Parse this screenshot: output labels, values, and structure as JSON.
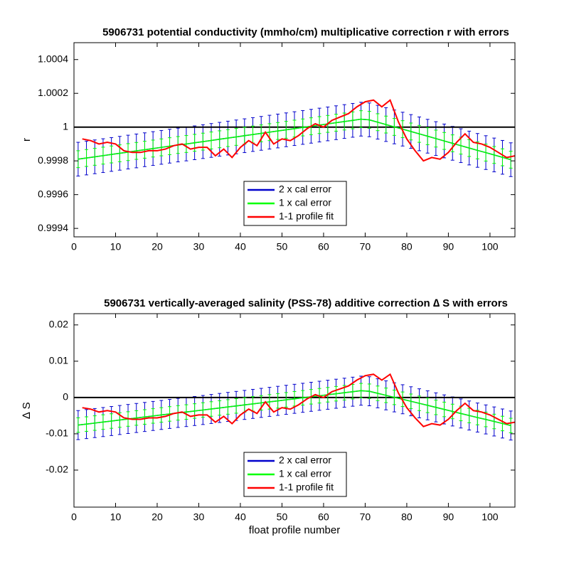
{
  "chart_data": [
    {
      "type": "errorbar",
      "title": "5906731 potential conductivity (mmho/cm) multiplicative correction r with errors",
      "ylabel": "r",
      "xlim": [
        0,
        106
      ],
      "ylim": [
        0.99935,
        1.0005
      ],
      "xticks": [
        0,
        10,
        20,
        30,
        40,
        50,
        60,
        70,
        80,
        90,
        100
      ],
      "yticks": [
        0.9994,
        0.9996,
        0.9998,
        1,
        1.0002,
        1.0004
      ],
      "reference_line": 1,
      "x": [
        1,
        3,
        5,
        7,
        9,
        11,
        13,
        15,
        17,
        19,
        21,
        23,
        25,
        27,
        29,
        31,
        33,
        35,
        37,
        39,
        41,
        43,
        45,
        47,
        49,
        51,
        53,
        55,
        57,
        59,
        61,
        63,
        65,
        67,
        69,
        71,
        73,
        75,
        77,
        79,
        81,
        83,
        85,
        87,
        89,
        91,
        93,
        95,
        97,
        99,
        101,
        103,
        105
      ],
      "series": [
        {
          "name": "2 x cal error",
          "color": "#0000cc",
          "error": 0.0001,
          "values": [
            0.99981,
            0.999817,
            0.999824,
            0.999831,
            0.999838,
            0.999845,
            0.999852,
            0.999859,
            0.999866,
            0.999873,
            0.99988,
            0.999887,
            0.999894,
            0.9999,
            0.999907,
            0.999914,
            0.999921,
            0.999928,
            0.999935,
            0.999942,
            0.999949,
            0.999956,
            0.999963,
            0.99997,
            0.999977,
            0.999984,
            0.999991,
            0.999998,
            1.000005,
            1.000012,
            1.000019,
            1.000026,
            1.000033,
            1.00004,
            1.000047,
            1.000043,
            1.000029,
            1.000015,
            1.000001,
            0.999988,
            0.999974,
            0.99996,
            0.999946,
            0.999932,
            0.999918,
            0.999904,
            0.99989,
            0.999876,
            0.999862,
            0.999849,
            0.999835,
            0.999821,
            0.999807
          ]
        },
        {
          "name": "1 x cal error",
          "color": "#00ff00",
          "error": 5e-05,
          "values": [
            0.99981,
            0.999817,
            0.999824,
            0.999831,
            0.999838,
            0.999845,
            0.999852,
            0.999859,
            0.999866,
            0.999873,
            0.99988,
            0.999887,
            0.999894,
            0.9999,
            0.999907,
            0.999914,
            0.999921,
            0.999928,
            0.999935,
            0.999942,
            0.999949,
            0.999956,
            0.999963,
            0.99997,
            0.999977,
            0.999984,
            0.999991,
            0.999998,
            1.000005,
            1.000012,
            1.000019,
            1.000026,
            1.000033,
            1.00004,
            1.000047,
            1.000043,
            1.000029,
            1.000015,
            1.000001,
            0.999988,
            0.999974,
            0.99996,
            0.999946,
            0.999932,
            0.999918,
            0.999904,
            0.99989,
            0.999876,
            0.999862,
            0.999849,
            0.999835,
            0.999821,
            0.999807
          ]
        },
        {
          "name": "1-1 profile fit",
          "color": "#ff0000",
          "x": [
            2,
            4,
            6,
            8,
            10,
            12,
            14,
            16,
            18,
            20,
            22,
            24,
            26,
            28,
            30,
            32,
            34,
            36,
            38,
            40,
            42,
            44,
            46,
            48,
            50,
            52,
            54,
            56,
            58,
            60,
            62,
            64,
            66,
            68,
            70,
            72,
            74,
            76,
            78,
            80,
            82,
            84,
            86,
            88,
            90,
            92,
            94,
            96,
            98,
            100,
            102,
            104,
            106
          ],
          "values": [
            0.99993,
            0.99992,
            0.9999,
            0.99991,
            0.9999,
            0.99986,
            0.99985,
            0.99985,
            0.99986,
            0.99986,
            0.99987,
            0.99989,
            0.9999,
            0.99987,
            0.99988,
            0.99988,
            0.99983,
            0.99987,
            0.99982,
            0.99988,
            0.99992,
            0.99989,
            0.99997,
            0.9999,
            0.99993,
            0.99992,
            0.99995,
            0.99999,
            1.00002,
            1,
            1.00004,
            1.00006,
            1.00008,
            1.00012,
            1.00015,
            1.00016,
            1.00012,
            1.00016,
            1.00003,
            0.99993,
            0.99986,
            0.9998,
            0.99982,
            0.99981,
            0.99985,
            0.99991,
            0.99996,
            0.99991,
            0.9999,
            0.99988,
            0.99985,
            0.99982,
            0.99983
          ]
        }
      ]
    },
    {
      "type": "errorbar",
      "title": "5906731 vertically-averaged salinity (PSS-78) additive correction ∆ S with errors",
      "ylabel": "∆ S",
      "xlabel": "float profile number",
      "xlim": [
        0,
        106
      ],
      "ylim": [
        -0.0302,
        0.0231
      ],
      "xticks": [
        0,
        10,
        20,
        30,
        40,
        50,
        60,
        70,
        80,
        90,
        100
      ],
      "yticks": [
        -0.02,
        -0.01,
        0,
        0.01,
        0.02
      ],
      "reference_line": 0,
      "x": [
        1,
        3,
        5,
        7,
        9,
        11,
        13,
        15,
        17,
        19,
        21,
        23,
        25,
        27,
        29,
        31,
        33,
        35,
        37,
        39,
        41,
        43,
        45,
        47,
        49,
        51,
        53,
        55,
        57,
        59,
        61,
        63,
        65,
        67,
        69,
        71,
        73,
        75,
        77,
        79,
        81,
        83,
        85,
        87,
        89,
        91,
        93,
        95,
        97,
        99,
        101,
        103,
        105
      ],
      "series": [
        {
          "name": "2 x cal error",
          "color": "#0000cc",
          "error": 0.004,
          "values": [
            -0.0076,
            -0.00732,
            -0.00704,
            -0.00676,
            -0.00648,
            -0.0062,
            -0.00592,
            -0.00564,
            -0.00536,
            -0.00508,
            -0.0048,
            -0.00452,
            -0.00424,
            -0.004,
            -0.00372,
            -0.00344,
            -0.00316,
            -0.00288,
            -0.0026,
            -0.00232,
            -0.00204,
            -0.00176,
            -0.00148,
            -0.0012,
            -0.00092,
            -0.00064,
            -0.00036,
            -8e-05,
            0.0002,
            0.00048,
            0.00076,
            0.00104,
            0.00132,
            0.0016,
            0.00188,
            0.00172,
            0.00116,
            0.0006,
            4e-05,
            -0.00048,
            -0.00104,
            -0.0016,
            -0.00216,
            -0.00272,
            -0.00328,
            -0.00384,
            -0.0044,
            -0.00496,
            -0.00552,
            -0.00604,
            -0.0066,
            -0.00716,
            -0.00772
          ]
        },
        {
          "name": "1 x cal error",
          "color": "#00ff00",
          "error": 0.002,
          "values": [
            -0.0076,
            -0.00732,
            -0.00704,
            -0.00676,
            -0.00648,
            -0.0062,
            -0.00592,
            -0.00564,
            -0.00536,
            -0.00508,
            -0.0048,
            -0.00452,
            -0.00424,
            -0.004,
            -0.00372,
            -0.00344,
            -0.00316,
            -0.00288,
            -0.0026,
            -0.00232,
            -0.00204,
            -0.00176,
            -0.00148,
            -0.0012,
            -0.00092,
            -0.00064,
            -0.00036,
            -8e-05,
            0.0002,
            0.00048,
            0.00076,
            0.00104,
            0.00132,
            0.0016,
            0.00188,
            0.00172,
            0.00116,
            0.0006,
            4e-05,
            -0.00048,
            -0.00104,
            -0.0016,
            -0.00216,
            -0.00272,
            -0.00328,
            -0.00384,
            -0.0044,
            -0.00496,
            -0.00552,
            -0.00604,
            -0.0066,
            -0.00716,
            -0.00772
          ]
        },
        {
          "name": "1-1 profile fit",
          "color": "#ff0000",
          "x": [
            2,
            4,
            6,
            8,
            10,
            12,
            14,
            16,
            18,
            20,
            22,
            24,
            26,
            28,
            30,
            32,
            34,
            36,
            38,
            40,
            42,
            44,
            46,
            48,
            50,
            52,
            54,
            56,
            58,
            60,
            62,
            64,
            66,
            68,
            70,
            72,
            74,
            76,
            78,
            80,
            82,
            84,
            86,
            88,
            90,
            92,
            94,
            96,
            98,
            100,
            102,
            104,
            106
          ],
          "values": [
            -0.0028,
            -0.0032,
            -0.004,
            -0.0036,
            -0.004,
            -0.0056,
            -0.006,
            -0.006,
            -0.0056,
            -0.0056,
            -0.0052,
            -0.0044,
            -0.004,
            -0.0052,
            -0.0048,
            -0.0048,
            -0.0068,
            -0.0052,
            -0.0072,
            -0.0048,
            -0.0032,
            -0.0044,
            -0.0012,
            -0.004,
            -0.0028,
            -0.0032,
            -0.002,
            -0.0004,
            0.0008,
            0,
            0.0016,
            0.0024,
            0.0032,
            0.0048,
            0.006,
            0.0064,
            0.0048,
            0.0064,
            0.0012,
            -0.0028,
            -0.0056,
            -0.008,
            -0.0072,
            -0.0076,
            -0.006,
            -0.0036,
            -0.0016,
            -0.0036,
            -0.004,
            -0.0048,
            -0.006,
            -0.0072,
            -0.0068
          ]
        }
      ]
    }
  ]
}
